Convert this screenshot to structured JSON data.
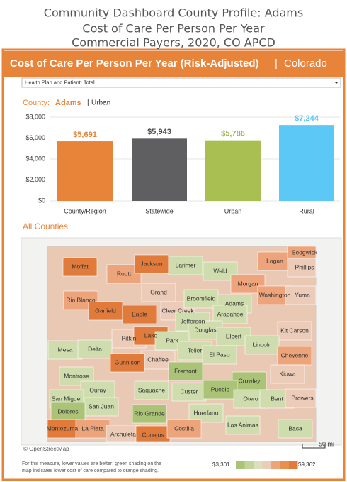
{
  "header": {
    "lines": [
      "Community Dashboard County Profile: Adams",
      "Cost of Care Per Person Per Year",
      "Commercial Payers, 2020, CO APCD"
    ]
  },
  "banner": {
    "title": "Cost of Care Per Person Per Year (Risk-Adjusted)",
    "separator": "|",
    "region": "Colorado"
  },
  "filter": "Health Plan and Patient: Total",
  "county": {
    "label": "County:",
    "name": "Adams",
    "separator": "|",
    "type": "Urban"
  },
  "chart_data": {
    "type": "bar",
    "categories": [
      "County/Region",
      "Statewide",
      "Urban",
      "Rural"
    ],
    "values": [
      5691,
      5943,
      5786,
      7244
    ],
    "value_labels": [
      "$5,691",
      "$5,943",
      "$5,786",
      "$7,244"
    ],
    "colors": [
      "#e8833a",
      "#5f5f62",
      "#a9bf52",
      "#5bc8f5"
    ],
    "label_colors": [
      "#e8833a",
      "#4d4d4f",
      "#9fb548",
      "#5bc8f5"
    ],
    "ylim": [
      0,
      8000
    ],
    "yticks": [
      {
        "value": 0,
        "label": "$0"
      },
      {
        "value": 2000,
        "label": "$2,000"
      },
      {
        "value": 4000,
        "label": "$4,000"
      },
      {
        "value": 6000,
        "label": "$6,000"
      },
      {
        "value": 8000,
        "label": "$8,000"
      }
    ],
    "grid": true
  },
  "map": {
    "title": "All Counties",
    "counties": [
      "Moffat",
      "Routt",
      "Jackson",
      "Larimer",
      "Weld",
      "Logan",
      "Sedgwick",
      "Phillips",
      "Morgan",
      "Washington",
      "Yuma",
      "Grand",
      "Rio Blanco",
      "Garfield",
      "Eagle",
      "Clear Creek",
      "Broomfield",
      "Adams",
      "Arapahoe",
      "Jefferson",
      "Douglas",
      "Elbert",
      "Kit Carson",
      "Pitkin",
      "Lake",
      "Park",
      "Lincoln",
      "Mesa",
      "Delta",
      "Teller",
      "El Paso",
      "Cheyenne",
      "Chaffee",
      "Gunnison",
      "Montrose",
      "Fremont",
      "Crowley",
      "Kiowa",
      "Ouray",
      "Saguache",
      "Custer",
      "Pueblo",
      "San Miguel",
      "San Juan",
      "Otero",
      "Bent",
      "Prowers",
      "Dolores",
      "Rio Grande",
      "Huerfano",
      "Montezuma",
      "La Plata",
      "Archuleta",
      "Conejos",
      "Costilla",
      "Las Animas",
      "Baca"
    ],
    "attribution": "© OpenStreetMap",
    "scale": "50 mi"
  },
  "footer": {
    "note": [
      "For this measure, lower values are better; green shading on the",
      "map indicates lower cost of care compared to orange shading."
    ],
    "legend_min": "$3,301",
    "legend_max": "$9,362"
  }
}
